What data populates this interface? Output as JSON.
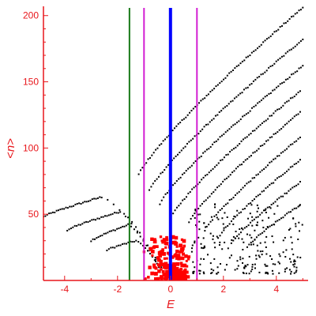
{
  "chart_data": {
    "type": "scatter",
    "xlabel": "E",
    "ylabel": "<n>",
    "xlim": [
      -4.8,
      5.2
    ],
    "ylim": [
      0,
      207
    ],
    "x_ticks": [
      -4,
      -2,
      0,
      2,
      4
    ],
    "y_ticks": [
      50,
      100,
      150,
      200
    ],
    "grid": false,
    "colors": {
      "axis": "#e8161b",
      "points": "#000000",
      "highlight": "#ff0000",
      "center_line": "#0000ff",
      "bound_lines": "#d21ed2",
      "left_line": "#1a7a1a"
    },
    "vertical_lines": [
      {
        "x": -1.55,
        "color": "#1a7a1a",
        "width": 2
      },
      {
        "x": -1.0,
        "color": "#d21ed2",
        "width": 2
      },
      {
        "x": 0.0,
        "color": "#0000ff",
        "width": 4
      },
      {
        "x": 1.0,
        "color": "#d21ed2",
        "width": 2
      }
    ],
    "curves": [
      {
        "x0": -4.8,
        "x1": -2.6,
        "yA": 48,
        "yB": 63,
        "descend_to": 1.5
      },
      {
        "x0": -3.9,
        "x1": -1.9,
        "yA": 38,
        "yB": 52,
        "descend_to": 0.8
      },
      {
        "x0": -3.0,
        "x1": -1.6,
        "yA": 30,
        "yB": 42,
        "descend_to": 0.5
      },
      {
        "x0": -2.4,
        "x1": -1.3,
        "yA": 23,
        "yB": 30,
        "descend_to": 0.3
      },
      {
        "x0": -1.2,
        "x1": 5.0,
        "yA": 80,
        "yB": 206
      },
      {
        "x0": -0.8,
        "x1": 5.0,
        "yA": 68,
        "yB": 182
      },
      {
        "x0": -0.4,
        "x1": 5.0,
        "yA": 58,
        "yB": 162
      },
      {
        "x0": 0.1,
        "x1": 4.9,
        "yA": 50,
        "yB": 143
      },
      {
        "x0": 0.7,
        "x1": 4.9,
        "yA": 44,
        "yB": 127
      },
      {
        "x0": 1.3,
        "x1": 4.9,
        "yA": 38,
        "yB": 108
      },
      {
        "x0": 1.8,
        "x1": 4.9,
        "yA": 32,
        "yB": 91
      },
      {
        "x0": 2.3,
        "x1": 4.9,
        "yA": 28,
        "yB": 74
      },
      {
        "x0": 2.9,
        "x1": 4.9,
        "yA": 25,
        "yB": 57
      }
    ],
    "scatter_region": {
      "x_range": [
        0.8,
        5.0
      ],
      "y_range": [
        5,
        60
      ],
      "count": 220
    },
    "highlight_region": {
      "x_range": [
        -1.1,
        1.1
      ],
      "y_range": [
        1,
        33
      ],
      "count": 160
    }
  }
}
